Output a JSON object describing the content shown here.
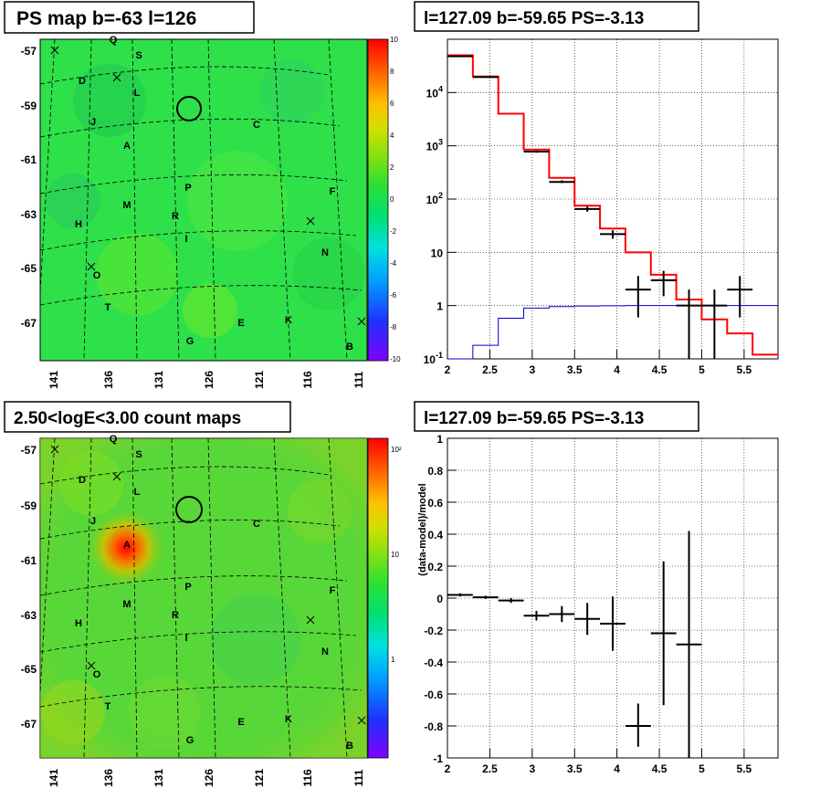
{
  "panels": {
    "ps_map": {
      "title": "PS map b=-63 l=126",
      "y_ticks": [
        "-57",
        "-59",
        "-61",
        "-63",
        "-65",
        "-67"
      ],
      "x_ticks": [
        "141",
        "136",
        "131",
        "126",
        "121",
        "116",
        "111"
      ],
      "colorbar_ticks": [
        "10",
        "8",
        "6",
        "4",
        "2",
        "0",
        "-2",
        "-4",
        "-6",
        "-8",
        "-10"
      ],
      "colorbar_range": [
        -10,
        10
      ]
    },
    "count_map": {
      "title": "2.50<logE<3.00 count maps",
      "y_ticks": [
        "-57",
        "-59",
        "-61",
        "-63",
        "-65",
        "-67"
      ],
      "x_ticks": [
        "141",
        "136",
        "131",
        "126",
        "121",
        "116",
        "111"
      ],
      "colorbar_ticks": [
        "10²",
        "10",
        "1"
      ],
      "colorbar_scale": "log"
    },
    "spectrum": {
      "title": "l=127.09 b=-59.65 PS=-3.13"
    },
    "residual": {
      "title": "l=127.09 b=-59.65 PS=-3.13"
    }
  },
  "source_labels": [
    "Q",
    "S",
    "D",
    "L",
    "J",
    "C",
    "A",
    "P",
    "F",
    "M",
    "R",
    "H",
    "I",
    "N",
    "O",
    "T",
    "E",
    "K",
    "G",
    "B"
  ],
  "chart_data": [
    {
      "type": "heatmap",
      "title": "PS map b=-63 l=126",
      "x_ticks": [
        141,
        136,
        131,
        126,
        121,
        116,
        111
      ],
      "y_ticks": [
        -57,
        -59,
        -61,
        -63,
        -65,
        -67
      ],
      "z_range": [
        -10,
        10
      ],
      "marker_circle": {
        "l": 127.09,
        "b": -59.65
      }
    },
    {
      "type": "heatmap",
      "title": "2.50<logE<3.00 count maps",
      "x_ticks": [
        141,
        136,
        131,
        126,
        121,
        116,
        111
      ],
      "y_ticks": [
        -57,
        -59,
        -61,
        -63,
        -65,
        -67
      ],
      "z_scale": "log",
      "marker_circle": {
        "l": 127.09,
        "b": -59.65
      }
    },
    {
      "type": "line",
      "title": "l=127.09 b=-59.65 PS=-3.13",
      "xlim": [
        2.0,
        5.9
      ],
      "ylim": [
        0.1,
        100000
      ],
      "yscale": "log",
      "x_ticks": [
        "2",
        "2.5",
        "3",
        "3.5",
        "4",
        "4.5",
        "5",
        "5.5"
      ],
      "y_ticks": [
        "10^-1",
        "1",
        "10",
        "10^2",
        "10^3",
        "10^4"
      ],
      "grid": true,
      "series": [
        {
          "kind": "step",
          "color": "#ff0000",
          "bin_edges": [
            2.0,
            2.3,
            2.6,
            2.9,
            3.2,
            3.5,
            3.8,
            4.1,
            4.4,
            4.7,
            5.0,
            5.3,
            5.6,
            5.9
          ],
          "values": [
            50000,
            20000,
            4000,
            850,
            250,
            75,
            28,
            10,
            3.8,
            1.3,
            0.55,
            0.3,
            0.12
          ]
        },
        {
          "kind": "step",
          "color": "#0000cc",
          "bin_edges": [
            2.0,
            2.3,
            2.6,
            2.9,
            3.2,
            3.5,
            3.8,
            4.1,
            4.4,
            4.7,
            5.0,
            5.3,
            5.6,
            5.9
          ],
          "values": [
            0.08,
            0.18,
            0.58,
            0.9,
            0.96,
            0.98,
            0.99,
            1.0,
            1.0,
            1.0,
            1.0,
            1.0,
            1.0
          ]
        },
        {
          "kind": "points",
          "color": "#000000",
          "x": [
            2.15,
            2.45,
            3.05,
            3.35,
            3.65,
            3.95,
            4.25,
            4.55,
            4.85,
            5.15,
            5.45
          ],
          "y": [
            48000,
            19500,
            780,
            210,
            65,
            22,
            2,
            3,
            1,
            1,
            2
          ],
          "xerr": 0.15,
          "ylo": [
            47000,
            19000,
            740,
            200,
            58,
            18,
            0.6,
            1.5,
            0.1,
            0.1,
            0.6
          ],
          "yhi": [
            49000,
            20000,
            820,
            225,
            72,
            26,
            3.6,
            4.5,
            2,
            2,
            3.6
          ]
        }
      ]
    },
    {
      "type": "scatter",
      "title": "l=127.09 b=-59.65 PS=-3.13",
      "ylabel": "(data-model)/model",
      "xlim": [
        2.0,
        5.9
      ],
      "ylim": [
        -1,
        1
      ],
      "x_ticks": [
        "2",
        "2.5",
        "3",
        "3.5",
        "4",
        "4.5",
        "5",
        "5.5"
      ],
      "y_ticks": [
        "-1",
        "-0.8",
        "-0.6",
        "-0.4",
        "-0.2",
        "0",
        "0.2",
        "0.4",
        "0.6",
        "0.8",
        "1"
      ],
      "grid": true,
      "series": [
        {
          "kind": "points",
          "color": "#000000",
          "x": [
            2.15,
            2.45,
            2.75,
            3.05,
            3.35,
            3.65,
            3.95,
            4.25,
            4.55,
            4.85
          ],
          "y": [
            0.02,
            0.005,
            -0.015,
            -0.11,
            -0.1,
            -0.13,
            -0.16,
            -0.8,
            -0.22,
            -0.29
          ],
          "xerr": 0.15,
          "ylo": [
            0.01,
            -0.005,
            -0.03,
            -0.14,
            -0.15,
            -0.23,
            -0.33,
            -0.93,
            -0.67,
            -1.0
          ],
          "yhi": [
            0.03,
            0.015,
            0.0,
            -0.08,
            -0.05,
            -0.03,
            0.01,
            -0.66,
            0.23,
            0.42
          ]
        }
      ]
    }
  ]
}
